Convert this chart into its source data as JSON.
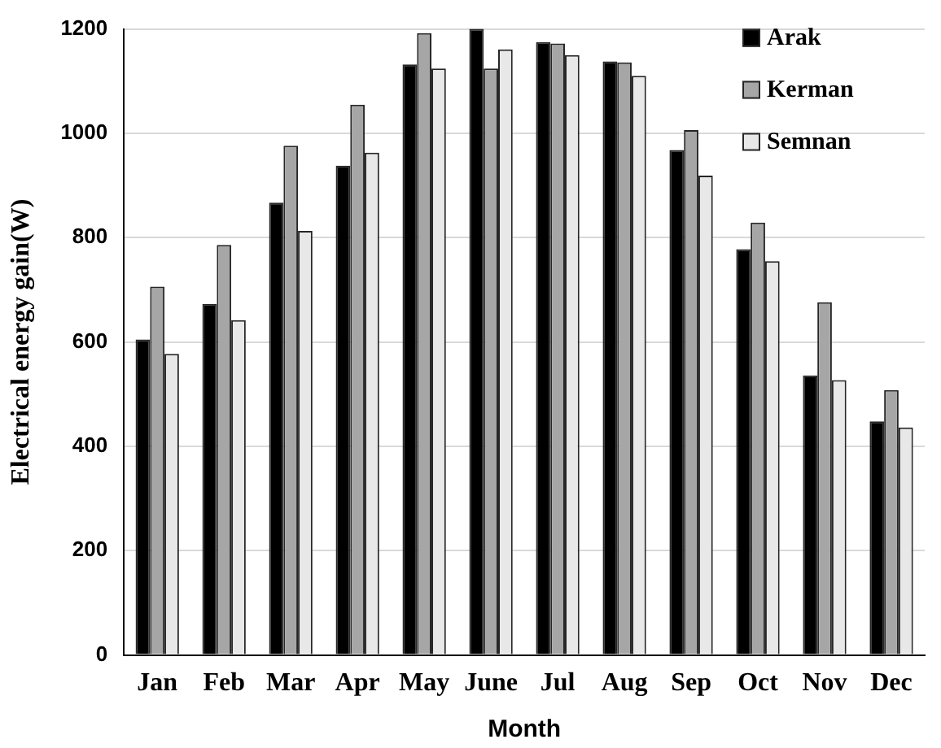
{
  "chart_data": {
    "type": "bar",
    "xlabel": "Month",
    "ylabel": "Electrical energy gain(W)",
    "categories": [
      "Jan",
      "Feb",
      "Mar",
      "Apr",
      "May",
      "June",
      "Jul",
      "Aug",
      "Sep",
      "Oct",
      "Nov",
      "Dec"
    ],
    "series": [
      {
        "name": "Arak",
        "color": "#000000",
        "values": [
          605,
          673,
          867,
          938,
          1132,
          1200,
          1175,
          1138,
          968,
          778,
          536,
          448
        ]
      },
      {
        "name": "Kerman",
        "color": "#a6a6a6",
        "values": [
          706,
          786,
          976,
          1055,
          1192,
          1124,
          1172,
          1136,
          1006,
          829,
          676,
          508
        ]
      },
      {
        "name": "Semnan",
        "color": "#e8e8e8",
        "values": [
          577,
          642,
          813,
          963,
          1124,
          1161,
          1150,
          1110,
          919,
          755,
          527,
          436
        ]
      }
    ],
    "ylim": [
      0,
      1200
    ],
    "yticks": [
      0,
      200,
      400,
      600,
      800,
      1000,
      1200
    ],
    "grid": "y",
    "legend": "top right"
  }
}
